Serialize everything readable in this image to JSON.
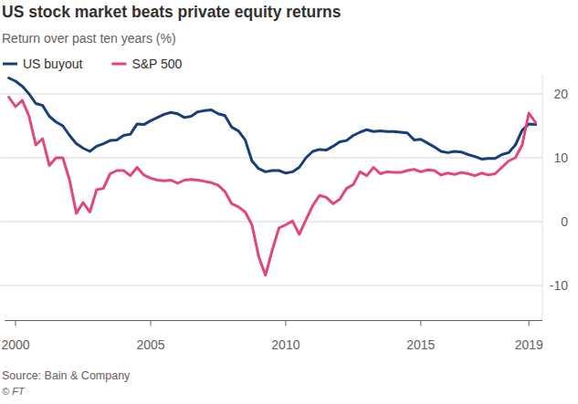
{
  "chart_data": {
    "type": "line",
    "title": "US stock market beats private equity returns",
    "subtitle": "Return over past ten years (%)",
    "source": "Source: Bain & Company",
    "credit": "© FT",
    "x": [
      1999.75,
      2000.0,
      2000.25,
      2000.5,
      2000.75,
      2001.0,
      2001.25,
      2001.5,
      2001.75,
      2002.0,
      2002.25,
      2002.5,
      2002.75,
      2003.0,
      2003.25,
      2003.5,
      2003.75,
      2004.0,
      2004.25,
      2004.5,
      2004.75,
      2005.0,
      2005.25,
      2005.5,
      2005.75,
      2006.0,
      2006.25,
      2006.5,
      2006.75,
      2007.0,
      2007.25,
      2007.5,
      2007.75,
      2008.0,
      2008.25,
      2008.5,
      2008.75,
      2009.0,
      2009.25,
      2009.5,
      2009.75,
      2010.0,
      2010.25,
      2010.5,
      2010.75,
      2011.0,
      2011.25,
      2011.5,
      2011.75,
      2012.0,
      2012.25,
      2012.5,
      2012.75,
      2013.0,
      2013.25,
      2013.5,
      2013.75,
      2014.0,
      2014.25,
      2014.5,
      2014.75,
      2015.0,
      2015.25,
      2015.5,
      2015.75,
      2016.0,
      2016.25,
      2016.5,
      2016.75,
      2017.0,
      2017.25,
      2017.5,
      2017.75,
      2018.0,
      2018.25,
      2018.5,
      2018.75,
      2019.0,
      2019.25
    ],
    "series": [
      {
        "name": "US buyout",
        "color": "#173f7a",
        "values": [
          22.5,
          22,
          21.2,
          20,
          18.5,
          18.2,
          16.5,
          15.6,
          15,
          13.5,
          12.2,
          11.5,
          11,
          11.8,
          12.2,
          12.7,
          12.8,
          13.5,
          13.7,
          15.3,
          15.2,
          15.8,
          16.3,
          16.8,
          17.1,
          16.9,
          16.3,
          16.5,
          17.2,
          17.4,
          17.5,
          16.9,
          16.6,
          14.8,
          14.2,
          12.8,
          9.5,
          8.3,
          7.8,
          8.0,
          8.0,
          7.6,
          7.8,
          8.5,
          10.0,
          11.0,
          11.3,
          11.2,
          11.8,
          12.5,
          12.7,
          13.5,
          14.0,
          14.4,
          14.1,
          14.2,
          14.1,
          14.1,
          14.0,
          13.9,
          12.8,
          12.9,
          12.3,
          11.7,
          11.0,
          10.8,
          11.0,
          10.9,
          10.5,
          10.2,
          9.8,
          9.9,
          9.9,
          10.5,
          10.8,
          12.0,
          14.3,
          15.3,
          15.2
        ]
      },
      {
        "name": "S&P 500",
        "color": "#e3467e",
        "values": [
          19.5,
          18,
          19,
          16.5,
          12,
          13,
          8.8,
          10,
          10,
          6.5,
          1.3,
          3,
          1.5,
          5,
          5.2,
          7.5,
          8,
          8,
          7.2,
          8.5,
          7.3,
          6.8,
          6.5,
          6.4,
          6.5,
          6,
          6.5,
          6.6,
          6.5,
          6.3,
          6.1,
          5.7,
          4.7,
          2.8,
          2.3,
          1.5,
          -0.5,
          -5.5,
          -8.4,
          -4.5,
          -1,
          -0.5,
          0.1,
          -2,
          0.3,
          2.5,
          4.1,
          3.8,
          2.8,
          3.5,
          5.2,
          5.8,
          7.8,
          7.2,
          8.5,
          7.5,
          7.8,
          7.7,
          7.7,
          8.0,
          8.2,
          7.8,
          8.1,
          8.0,
          7.3,
          7.6,
          7.4,
          7.7,
          7.5,
          7.2,
          7.6,
          7.3,
          7.5,
          8.5,
          9.5,
          10.0,
          12,
          17,
          15.5
        ]
      }
    ],
    "xlim": [
      1999.6,
      2019.5
    ],
    "xticks": [
      2000,
      2005,
      2010,
      2015,
      2019
    ],
    "ylim": [
      -15.5,
      23
    ],
    "yticks": [
      -10,
      0,
      10,
      20
    ],
    "grid": true,
    "legend": "top-left"
  }
}
